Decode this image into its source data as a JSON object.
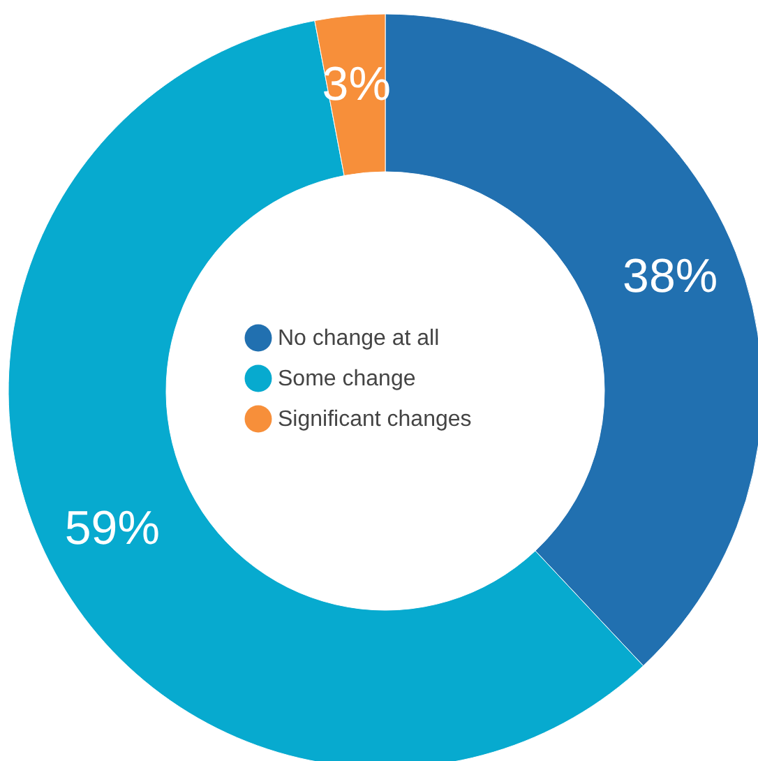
{
  "chart_data": {
    "type": "donut",
    "categories": [
      "No change at all",
      "Some change",
      "Significant changes"
    ],
    "values": [
      38,
      59,
      3
    ],
    "colors": [
      "#2170b0",
      "#07aacf",
      "#f78f3a"
    ],
    "value_labels": [
      "38%",
      "59%",
      "3%"
    ],
    "legend": "center"
  }
}
